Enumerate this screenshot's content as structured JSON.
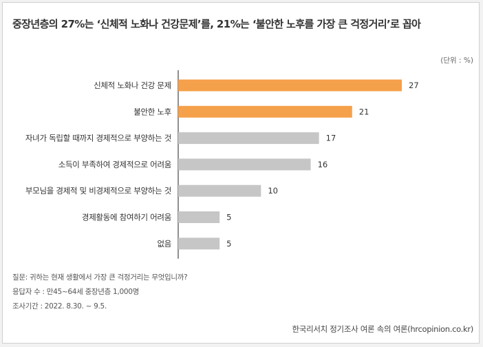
{
  "title": "중장년층의 27%는 ‘신체적 노화나 건강문제’를, 21%는 ‘불안한 노후를 가장 큰 걱정거리’로 꼽아",
  "unit_label": "(단위 : %)",
  "colors": {
    "highlight": "#f5a04b",
    "normal": "#c6c6c6",
    "axis": "#444444"
  },
  "chart_data": {
    "type": "bar",
    "orientation": "horizontal",
    "title": "중장년층의 27%는 ‘신체적 노화나 건강문제’를, 21%는 ‘불안한 노후를 가장 큰 걱정거리’로 꼽아",
    "unit": "%",
    "categories": [
      "신체적 노화나 건강 문제",
      "불안한 노후",
      "자녀가 독립할 때까지 경제적으로 부양하는 것",
      "소득이 부족하여 경제적으로 어려움",
      "부모님을 경제적 및 비경제적으로 부양하는 것",
      "경제활동에 참여하기 어려움",
      "없음"
    ],
    "values": [
      27,
      21,
      17,
      16,
      10,
      5,
      5
    ],
    "highlighted": [
      true,
      true,
      false,
      false,
      false,
      false,
      false
    ],
    "xlim": [
      0,
      30
    ]
  },
  "footnotes": {
    "question": "질문: 귀하는 현재 생활에서 가장 큰 걱정거리는 무엇입니까?",
    "respondents": "응답자 수 : 만45~64세 중장년층 1,000명",
    "period": "조사기간 : 2022. 8.30. ~ 9.5."
  },
  "source": "한국리서치 정기조사 여론 속의 여론(hrcopinion.co.kr)"
}
